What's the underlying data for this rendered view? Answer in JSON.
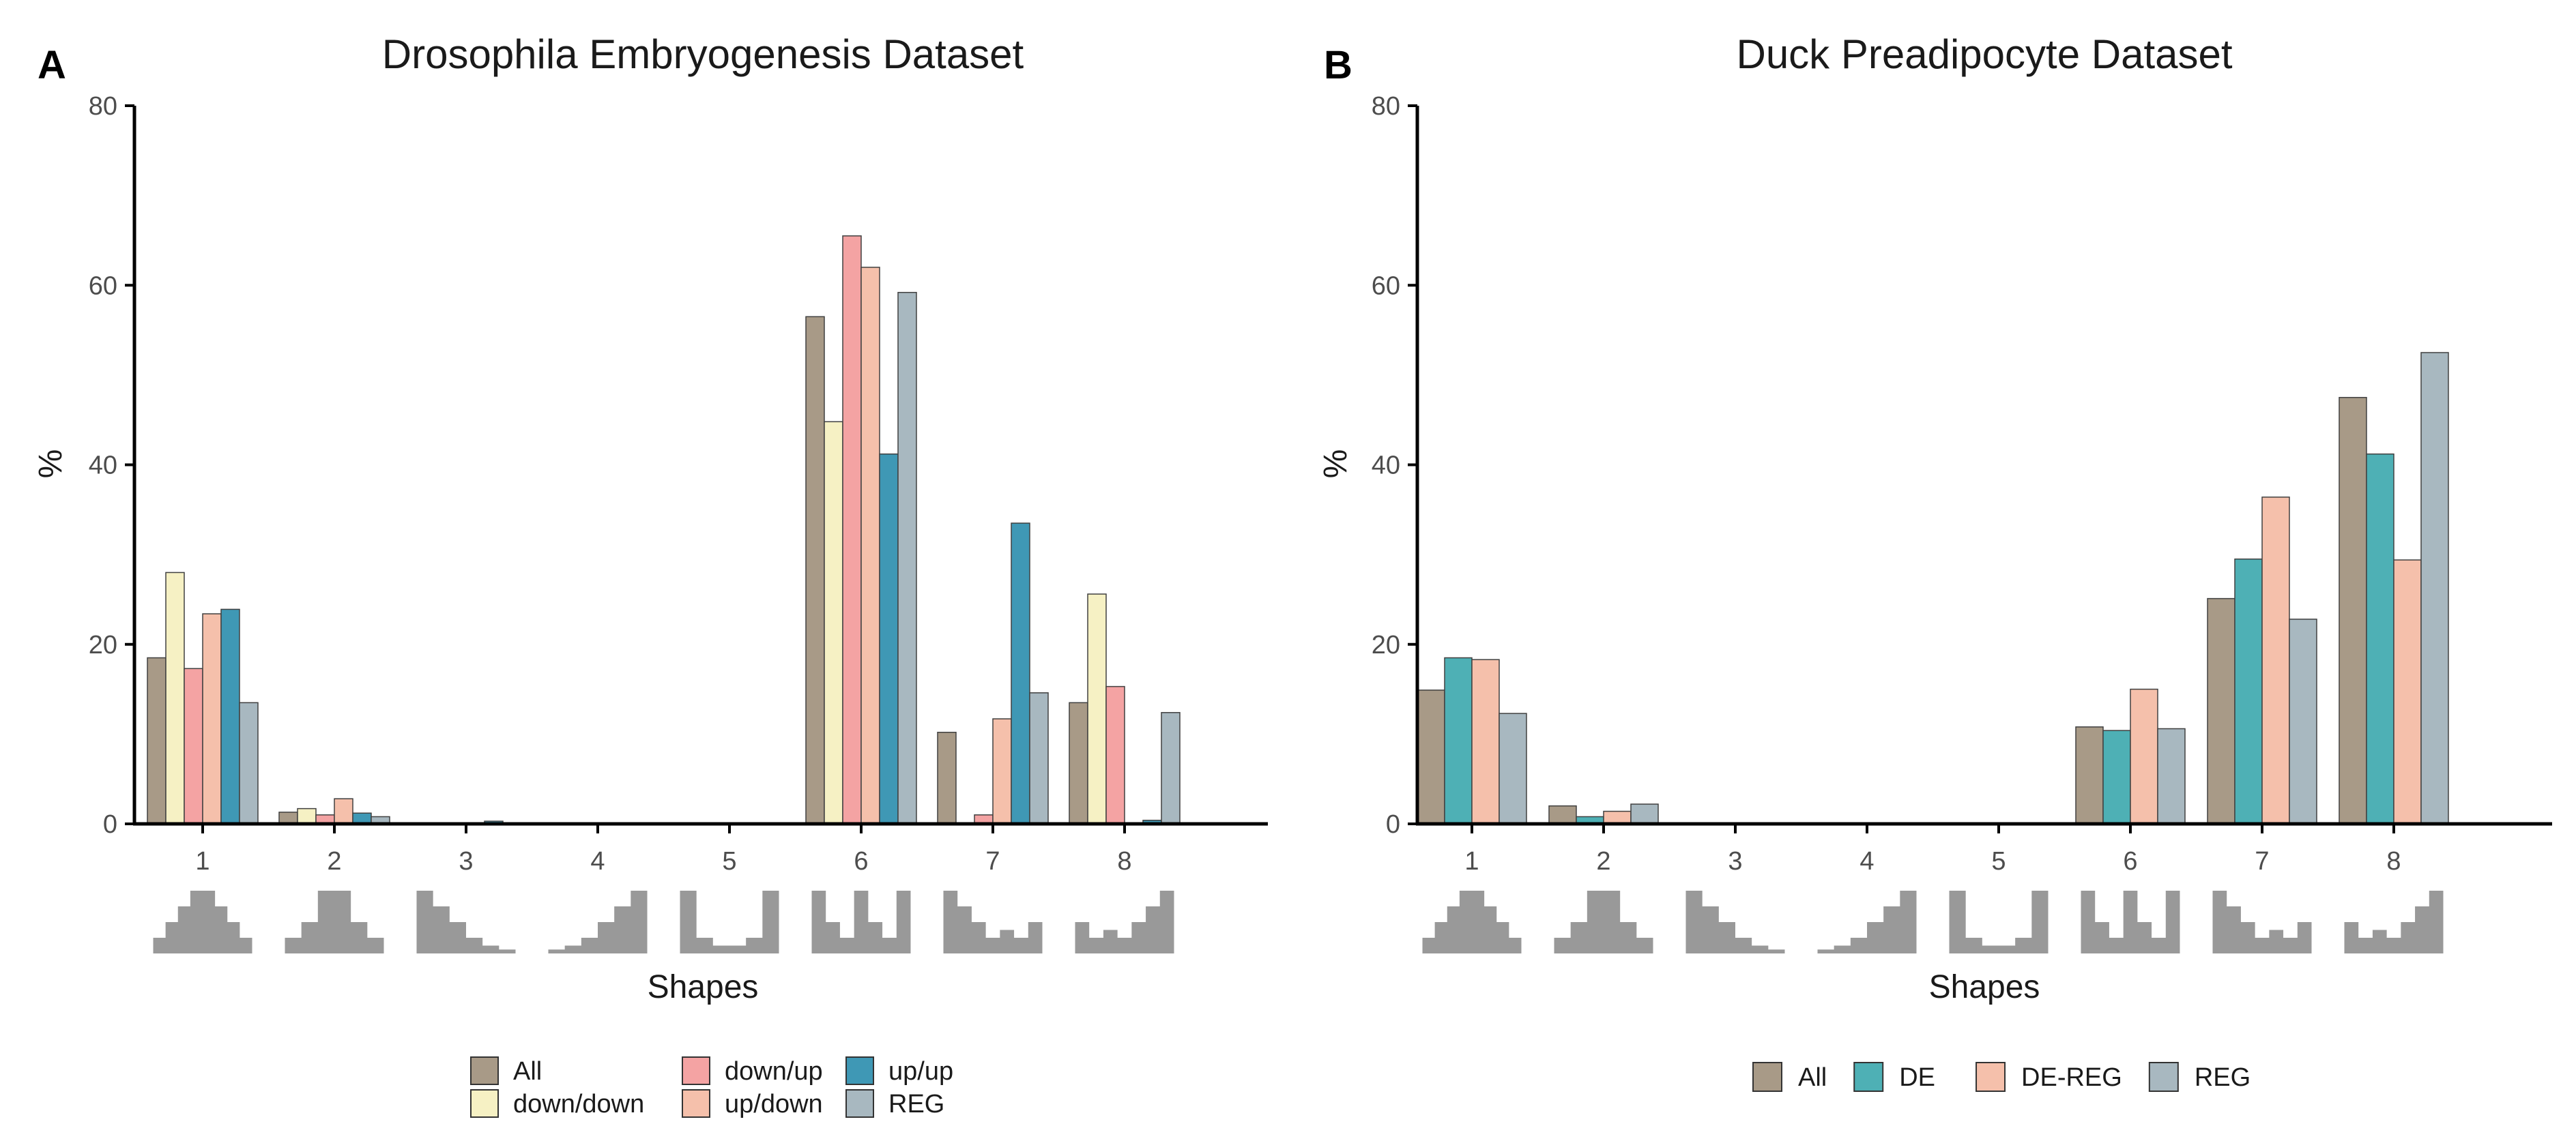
{
  "chart_data": [
    {
      "type": "bar",
      "panel": "A",
      "title": "Drosophila Embryogenesis Dataset",
      "xlabel": "Shapes",
      "ylabel": "%",
      "ylim": [
        0,
        80
      ],
      "yticks": [
        0,
        20,
        40,
        60,
        80
      ],
      "categories": [
        "1",
        "2",
        "3",
        "4",
        "5",
        "6",
        "7",
        "8"
      ],
      "series": [
        {
          "name": "All",
          "color": "#a89a87",
          "values": [
            18.5,
            1.3,
            0.1,
            0,
            0,
            56.5,
            10.2,
            13.5
          ]
        },
        {
          "name": "down/down",
          "color": "#f6f1c4",
          "values": [
            28,
            1.7,
            0,
            0,
            0,
            44.8,
            0,
            25.6
          ]
        },
        {
          "name": "down/up",
          "color": "#f4a3a3",
          "values": [
            17.3,
            1.0,
            0,
            0,
            0,
            65.5,
            1.0,
            15.3
          ]
        },
        {
          "name": "up/down",
          "color": "#f5c0ab",
          "values": [
            23.4,
            2.8,
            0,
            0,
            0,
            62.0,
            11.7,
            0
          ]
        },
        {
          "name": "up/up",
          "color": "#3f98b5",
          "values": [
            23.9,
            1.2,
            0.3,
            0,
            0,
            41.2,
            33.5,
            0.4
          ]
        },
        {
          "name": "REG",
          "color": "#a8b8c0",
          "values": [
            13.5,
            0.8,
            0.1,
            0,
            0,
            59.2,
            14.6,
            12.4
          ]
        }
      ],
      "legend_position": "bottom"
    },
    {
      "type": "bar",
      "panel": "B",
      "title": "Duck Preadipocyte Dataset",
      "xlabel": "Shapes",
      "ylabel": "%",
      "ylim": [
        0,
        80
      ],
      "yticks": [
        0,
        20,
        40,
        60,
        80
      ],
      "categories": [
        "1",
        "2",
        "3",
        "4",
        "5",
        "6",
        "7",
        "8"
      ],
      "series": [
        {
          "name": "All",
          "color": "#a89a87",
          "values": [
            14.9,
            2.0,
            0,
            0,
            0,
            10.8,
            25.1,
            47.5
          ]
        },
        {
          "name": "DE",
          "color": "#4eb0b5",
          "values": [
            18.5,
            0.8,
            0,
            0,
            0,
            10.4,
            29.5,
            41.2
          ]
        },
        {
          "name": "DE-REG",
          "color": "#f5c0ab",
          "values": [
            18.3,
            1.4,
            0,
            0,
            0,
            15.0,
            36.4,
            29.4
          ]
        },
        {
          "name": "REG",
          "color": "#a8b8c0",
          "values": [
            12.3,
            2.2,
            0,
            0,
            0,
            10.6,
            22.8,
            52.5
          ]
        }
      ],
      "legend_position": "bottom"
    }
  ],
  "shape_profiles": [
    [
      1,
      2,
      3,
      4,
      4,
      3,
      2,
      1
    ],
    [
      1,
      2,
      4,
      4,
      2,
      1
    ],
    [
      4,
      3,
      2,
      1,
      0.5,
      0.25
    ],
    [
      0.25,
      0.5,
      1,
      2,
      3,
      4
    ],
    [
      4,
      1,
      0.5,
      0.5,
      1,
      4
    ],
    [
      4,
      2,
      1,
      4,
      2,
      1,
      4
    ],
    [
      4,
      3,
      2,
      1,
      1.5,
      1,
      2
    ],
    [
      2,
      1,
      1.5,
      1,
      2,
      3,
      4
    ]
  ],
  "colors": {
    "axis": "#000000",
    "shape_fill": "#999999",
    "bar_stroke": "#404040"
  }
}
